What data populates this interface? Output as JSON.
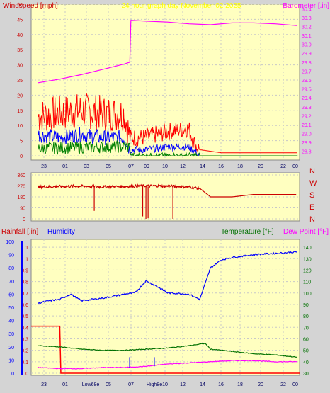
{
  "header": {
    "left": "Windspeed [mph]",
    "center": "24 hour graph day   November 02 2025",
    "right": "Barometer [.in]"
  },
  "bottom_header": {
    "rainfall": "Rainfall [.in]",
    "humidity": "Humidity",
    "temperature": "Temperature [°F]",
    "dewpoint": "Dew Point [°F]"
  },
  "footer": {
    "low_label": "Low68e",
    "high_label": "High8e"
  },
  "colors": {
    "plot_bg": "#ffffc0",
    "frame_bg": "#d4d4d4",
    "wind_gust": "#ff0000",
    "wind_avg": "#0000ff",
    "wind_low": "#008000",
    "barometer": "#ff00ff",
    "direction": "#cc0000",
    "rain": "#ff0000",
    "humidity": "#0000ff",
    "temperature": "#007000",
    "dewpoint": "#ff00ff",
    "title": "#ffff00"
  },
  "chart_data": [
    {
      "type": "line",
      "name": "wind-and-barometer",
      "x_tick_labels": [
        "23",
        "01",
        "03",
        "05",
        "07",
        "09",
        "10",
        "12",
        "14",
        "16",
        "18",
        "20",
        "22",
        "00"
      ],
      "y_left_label": "Windspeed [mph]",
      "y_left_ticks": [
        0,
        5,
        10,
        15,
        20,
        25,
        30,
        35,
        40,
        45,
        50
      ],
      "y_left_range": [
        0,
        50
      ],
      "y_right_label": "Barometer [.in]",
      "y_right_ticks": [
        28.8,
        28.9,
        29.0,
        29.1,
        29.2,
        29.3,
        29.4,
        29.5,
        29.6,
        29.7,
        29.8,
        29.9,
        30.0,
        30.1,
        30.2,
        30.3,
        30.4
      ],
      "y_right_range": [
        28.75,
        30.45
      ],
      "series": [
        {
          "name": "Windspeed",
          "hours": [
            0,
            2,
            4,
            6,
            8,
            8.5,
            10,
            12,
            14,
            14.5,
            15,
            17,
            19,
            21,
            23,
            24
          ],
          "values": [
            13,
            14,
            15,
            14,
            14,
            6,
            6,
            8,
            9,
            4,
            2,
            1,
            1,
            1,
            1,
            1
          ]
        },
        {
          "name": "Wind average",
          "hours": [
            0,
            2,
            4,
            6,
            8,
            8.5,
            10,
            12,
            14,
            15,
            24
          ],
          "values": [
            7,
            6,
            7,
            6,
            6,
            2,
            2,
            3,
            3,
            0,
            0
          ]
        },
        {
          "name": "Barometer",
          "hours": [
            0,
            2,
            4,
            6,
            8,
            8.5,
            8.6,
            10,
            12,
            14,
            16,
            18,
            20,
            22,
            24
          ],
          "values": [
            29.57,
            29.61,
            29.66,
            29.72,
            29.78,
            29.8,
            30.27,
            30.26,
            30.25,
            30.23,
            30.22,
            30.24,
            30.24,
            30.23,
            30.21
          ]
        }
      ]
    },
    {
      "type": "line",
      "name": "wind-direction",
      "y_left_ticks": [
        0,
        90,
        180,
        270,
        360
      ],
      "y_left_range": [
        0,
        360
      ],
      "y_right_labels": [
        "N",
        "W",
        "S",
        "E",
        "N"
      ],
      "series": [
        {
          "name": "Wind direction",
          "hours": [
            0,
            2,
            4,
            6,
            8,
            10,
            12,
            14,
            15,
            16,
            17,
            18,
            20,
            22,
            24
          ],
          "values": [
            262,
            265,
            268,
            262,
            265,
            270,
            268,
            262,
            250,
            180,
            180,
            180,
            200,
            200,
            200
          ]
        }
      ]
    },
    {
      "type": "line",
      "name": "rain-humidity-temperature",
      "y_left_label": "Rainfall [.in]",
      "y_left_ticks": [
        0,
        0.1,
        0.2,
        0.3,
        0.4,
        0.5,
        0.6,
        0.7,
        0.8,
        0.9,
        1,
        1.1
      ],
      "y_left_range": [
        0,
        1.15
      ],
      "y_humidity_label": "Humidity",
      "y_humidity_ticks": [
        0,
        10,
        20,
        30,
        40,
        50,
        60,
        70,
        80,
        90,
        100
      ],
      "y_right_label": "Temperature [°F]",
      "y_right_label_2": "Dew Point [°F]",
      "y_right_ticks": [
        30,
        40,
        50,
        60,
        70,
        80,
        90,
        100,
        110,
        120,
        130,
        140
      ],
      "y_right_range": [
        30,
        145
      ],
      "series": [
        {
          "name": "Rainfall",
          "hours": [
            0,
            2,
            2.1,
            24
          ],
          "values": [
            0.41,
            0.41,
            0,
            0
          ]
        },
        {
          "name": "Humidity",
          "hours": [
            0,
            1,
            2,
            3,
            4,
            6,
            8,
            9,
            10,
            11,
            12,
            14,
            15,
            16,
            17,
            18,
            20,
            22,
            24
          ],
          "values": [
            53,
            55,
            56,
            60,
            55,
            57,
            60,
            61,
            70,
            66,
            61,
            60,
            56,
            80,
            86,
            88,
            90,
            91,
            92
          ]
        },
        {
          "name": "Temperature",
          "hours": [
            0,
            2,
            4,
            6,
            8,
            10,
            12,
            14,
            15.5,
            16,
            18,
            20,
            22,
            24
          ],
          "values": [
            54,
            53,
            51,
            50,
            50,
            51,
            52,
            54,
            56,
            51,
            49,
            47,
            46,
            44
          ]
        },
        {
          "name": "Dew Point",
          "hours": [
            0,
            2,
            4,
            6,
            8,
            10,
            12,
            14,
            16,
            18,
            20,
            22,
            24
          ],
          "values": [
            35,
            34,
            34,
            35,
            35,
            36,
            38,
            39,
            40,
            41,
            41,
            40,
            40
          ]
        }
      ]
    }
  ]
}
